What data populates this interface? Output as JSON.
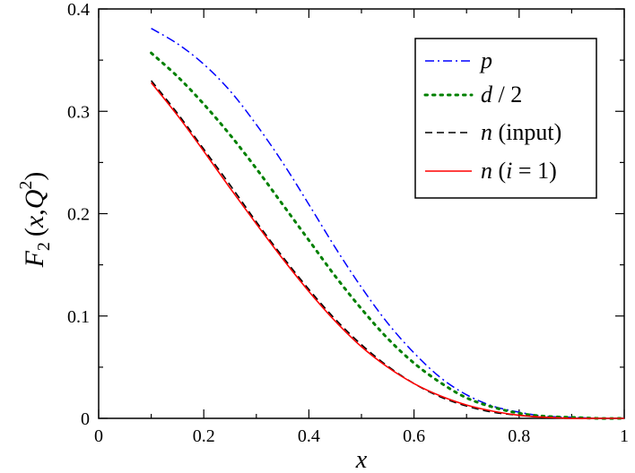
{
  "chart_data": {
    "type": "line",
    "title": "",
    "xlabel": "x",
    "ylabel": {
      "main": "F",
      "sub": "2",
      "args_open": "(",
      "arg_x": "x",
      "comma": ",",
      "arg_q": "Q",
      "sup": "2",
      "args_close": ")"
    },
    "xlim": [
      0,
      1
    ],
    "ylim": [
      0,
      0.4
    ],
    "xticks": [
      0,
      0.2,
      0.4,
      0.6,
      0.8,
      1
    ],
    "xtick_labels": [
      "0",
      "0.2",
      "0.4",
      "0.6",
      "0.8",
      "1"
    ],
    "yticks": [
      0,
      0.1,
      0.2,
      0.3,
      0.4
    ],
    "ytick_labels": [
      "0",
      "0.1",
      "0.2",
      "0.3",
      "0.4"
    ],
    "grid": false,
    "legend_position": "top-right",
    "series": [
      {
        "name": "p",
        "color": "#0000ff",
        "dash": "dash-dot",
        "x": [
          0.1,
          0.15,
          0.2,
          0.25,
          0.3,
          0.35,
          0.4,
          0.45,
          0.5,
          0.55,
          0.6,
          0.65,
          0.7,
          0.75,
          0.8,
          0.85,
          0.9,
          0.95,
          1.0
        ],
        "y": [
          0.381,
          0.366,
          0.346,
          0.32,
          0.287,
          0.25,
          0.209,
          0.167,
          0.128,
          0.093,
          0.064,
          0.04,
          0.023,
          0.012,
          0.006,
          0.002,
          0.001,
          0.0,
          0.0
        ]
      },
      {
        "name": "d / 2",
        "color": "#008000",
        "dash": "dotted",
        "x": [
          0.1,
          0.15,
          0.2,
          0.25,
          0.3,
          0.35,
          0.4,
          0.45,
          0.5,
          0.55,
          0.6,
          0.65,
          0.7,
          0.75,
          0.8,
          0.85,
          0.9,
          0.95,
          1.0
        ],
        "y": [
          0.357,
          0.334,
          0.307,
          0.277,
          0.244,
          0.209,
          0.174,
          0.139,
          0.107,
          0.078,
          0.054,
          0.035,
          0.02,
          0.011,
          0.005,
          0.002,
          0.001,
          0.0,
          0.0
        ]
      },
      {
        "name": "n (input)",
        "color": "#000000",
        "dash": "dashed",
        "x": [
          0.1,
          0.15,
          0.2,
          0.25,
          0.3,
          0.35,
          0.4,
          0.45,
          0.5,
          0.55,
          0.6,
          0.65,
          0.7,
          0.75,
          0.8,
          0.85,
          0.9,
          0.95,
          1.0
        ],
        "y": [
          0.33,
          0.298,
          0.263,
          0.228,
          0.192,
          0.158,
          0.126,
          0.097,
          0.072,
          0.051,
          0.034,
          0.021,
          0.012,
          0.006,
          0.003,
          0.001,
          0.0,
          0.0,
          0.0
        ]
      },
      {
        "name": "n (i = 1)",
        "color": "#ff0000",
        "dash": "solid",
        "x": [
          0.1,
          0.15,
          0.2,
          0.25,
          0.3,
          0.35,
          0.4,
          0.45,
          0.5,
          0.55,
          0.6,
          0.65,
          0.7,
          0.75,
          0.8,
          0.85,
          0.9,
          0.95,
          1.0
        ],
        "y": [
          0.328,
          0.296,
          0.261,
          0.225,
          0.19,
          0.156,
          0.124,
          0.095,
          0.07,
          0.05,
          0.034,
          0.022,
          0.013,
          0.007,
          0.003,
          0.001,
          0.0,
          0.0,
          0.0
        ]
      }
    ]
  },
  "legend": {
    "p": {
      "label": "p"
    },
    "d": {
      "italic": "d",
      "rest": " / 2"
    },
    "ninput": {
      "italic": "n",
      "rest": " (input)"
    },
    "ni": {
      "italic_n": "n",
      "open": " (",
      "italic_i": "i",
      "rest": " = 1)"
    }
  }
}
